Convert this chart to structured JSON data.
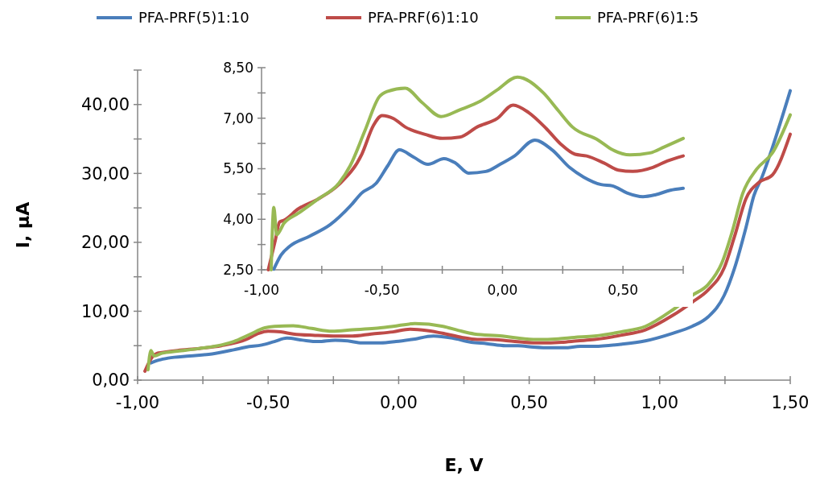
{
  "chart_data": [
    {
      "type": "line",
      "xlabel": "E, V",
      "ylabel": "I, µA",
      "legend": "top",
      "xlim": [
        -1,
        1.5
      ],
      "ylim": [
        0,
        45
      ],
      "xticks": [
        {
          "value": -1,
          "label": "-1,00"
        },
        {
          "value": -0.75,
          "label": null
        },
        {
          "value": -0.5,
          "label": "-0,50"
        },
        {
          "value": -0.25,
          "label": null
        },
        {
          "value": 0,
          "label": "0,00"
        },
        {
          "value": 0.25,
          "label": null
        },
        {
          "value": 0.5,
          "label": "0,50"
        },
        {
          "value": 0.75,
          "label": null
        },
        {
          "value": 1,
          "label": "1,00"
        },
        {
          "value": 1.25,
          "label": null
        },
        {
          "value": 1.5,
          "label": "1,50"
        }
      ],
      "yticks": [
        {
          "value": 0,
          "label": "0,00"
        },
        {
          "value": 5,
          "label": null
        },
        {
          "value": 10,
          "label": "10,00"
        },
        {
          "value": 15,
          "label": null
        },
        {
          "value": 20,
          "label": "20,00"
        },
        {
          "value": 25,
          "label": null
        },
        {
          "value": 30,
          "label": "30,00"
        },
        {
          "value": 35,
          "label": null
        },
        {
          "value": 40,
          "label": "40,00"
        },
        {
          "value": 45,
          "label": null
        }
      ],
      "series": [
        {
          "name": "PFA-PRF(5)1:10",
          "color": "#4a7ebb",
          "x": [
            -0.949,
            -0.919,
            -0.883,
            -0.8,
            -0.715,
            -0.632,
            -0.584,
            -0.524,
            -0.476,
            -0.428,
            -0.368,
            -0.309,
            -0.243,
            -0.195,
            -0.141,
            -0.069,
            -0.01,
            0.05,
            0.134,
            0.206,
            0.278,
            0.337,
            0.409,
            0.457,
            0.517,
            0.583,
            0.636,
            0.696,
            0.75,
            0.85,
            0.945,
            1.05,
            1.124,
            1.186,
            1.247,
            1.287,
            1.33,
            1.361,
            1.392,
            1.432,
            1.5
          ],
          "values": [
            2.5,
            2.9,
            3.2,
            3.5,
            3.8,
            4.4,
            4.8,
            5.1,
            5.6,
            6.1,
            5.8,
            5.6,
            5.8,
            5.7,
            5.4,
            5.4,
            5.6,
            5.9,
            6.4,
            6.1,
            5.5,
            5.3,
            5.0,
            5.0,
            4.8,
            4.7,
            4.7,
            4.9,
            4.9,
            5.2,
            5.7,
            6.8,
            7.8,
            9.2,
            12.3,
            16.3,
            22.1,
            26.8,
            29.5,
            33.8,
            42.0
          ]
        },
        {
          "name": "PFA-PRF(6)1:10",
          "color": "#be4b48",
          "x": [
            -0.972,
            -0.943,
            -0.925,
            -0.907,
            -0.847,
            -0.763,
            -0.679,
            -0.584,
            -0.536,
            -0.5,
            -0.452,
            -0.404,
            -0.321,
            -0.249,
            -0.177,
            -0.105,
            -0.022,
            0.044,
            0.11,
            0.182,
            0.242,
            0.301,
            0.349,
            0.421,
            0.481,
            0.541,
            0.624,
            0.684,
            0.75,
            0.85,
            0.945,
            1.05,
            1.124,
            1.186,
            1.247,
            1.287,
            1.33,
            1.38,
            1.432,
            1.5
          ],
          "values": [
            1.3,
            3.4,
            3.9,
            4.0,
            4.3,
            4.6,
            5.0,
            5.9,
            6.8,
            7.1,
            7.0,
            6.7,
            6.5,
            6.4,
            6.4,
            6.7,
            7.0,
            7.4,
            7.2,
            6.7,
            6.2,
            5.9,
            5.9,
            5.7,
            5.5,
            5.4,
            5.5,
            5.7,
            5.9,
            6.5,
            7.3,
            9.4,
            11.3,
            13.1,
            16.3,
            20.9,
            26.3,
            28.7,
            29.8,
            35.7
          ]
        },
        {
          "name": "PFA-PRF(6)1:5",
          "color": "#98b954",
          "x": [
            -0.96,
            -0.949,
            -0.937,
            -0.907,
            -0.847,
            -0.763,
            -0.679,
            -0.632,
            -0.572,
            -0.512,
            -0.476,
            -0.404,
            -0.333,
            -0.255,
            -0.177,
            -0.093,
            -0.022,
            0.062,
            0.17,
            0.23,
            0.29,
            0.397,
            0.457,
            0.529,
            0.612,
            0.672,
            0.75,
            0.85,
            0.945,
            1.05,
            1.124,
            1.186,
            1.238,
            1.278,
            1.318,
            1.371,
            1.432,
            1.5
          ],
          "values": [
            1.5,
            4.3,
            3.5,
            3.9,
            4.2,
            4.6,
            5.1,
            5.6,
            6.6,
            7.6,
            7.8,
            7.9,
            7.5,
            7.1,
            7.3,
            7.5,
            7.8,
            8.2,
            7.8,
            7.2,
            6.7,
            6.4,
            6.1,
            5.9,
            6.0,
            6.2,
            6.4,
            7.0,
            7.8,
            10.2,
            12.3,
            13.9,
            17.0,
            21.6,
            27.1,
            30.6,
            33.0,
            38.5
          ]
        }
      ]
    },
    {
      "type": "line",
      "xlim": [
        -1,
        0.75
      ],
      "ylim": [
        2.5,
        8.5
      ],
      "xticks": [
        {
          "value": -1,
          "label": "-1,00"
        },
        {
          "value": -0.75,
          "label": null
        },
        {
          "value": -0.5,
          "label": "-0,50"
        },
        {
          "value": -0.25,
          "label": null
        },
        {
          "value": 0,
          "label": "0,00"
        },
        {
          "value": 0.25,
          "label": null
        },
        {
          "value": 0.5,
          "label": "0,50"
        },
        {
          "value": 0.75,
          "label": null
        }
      ],
      "yticks": [
        {
          "value": 2.5,
          "label": "2,50"
        },
        {
          "value": 3.25,
          "label": null
        },
        {
          "value": 4,
          "label": "4,00"
        },
        {
          "value": 4.75,
          "label": null
        },
        {
          "value": 5.5,
          "label": "5,50"
        },
        {
          "value": 6.25,
          "label": null
        },
        {
          "value": 7,
          "label": "7,00"
        },
        {
          "value": 7.75,
          "label": null
        },
        {
          "value": 8.5,
          "label": "8,50"
        }
      ],
      "series": [
        {
          "color": "#4a7ebb",
          "x": [
            -0.949,
            -0.919,
            -0.883,
            -0.8,
            -0.715,
            -0.632,
            -0.584,
            -0.524,
            -0.476,
            -0.428,
            -0.368,
            -0.309,
            -0.243,
            -0.195,
            -0.141,
            -0.069,
            -0.01,
            0.05,
            0.134,
            0.206,
            0.278,
            0.337,
            0.409,
            0.457,
            0.517,
            0.583,
            0.636,
            0.696,
            0.75
          ],
          "values": [
            2.52,
            2.94,
            3.2,
            3.5,
            3.84,
            4.39,
            4.78,
            5.07,
            5.59,
            6.06,
            5.84,
            5.63,
            5.8,
            5.67,
            5.37,
            5.42,
            5.63,
            5.88,
            6.35,
            6.06,
            5.54,
            5.25,
            5.03,
            4.99,
            4.78,
            4.67,
            4.73,
            4.86,
            4.92
          ]
        },
        {
          "color": "#be4b48",
          "x": [
            -0.972,
            -0.943,
            -0.925,
            -0.907,
            -0.847,
            -0.763,
            -0.679,
            -0.584,
            -0.536,
            -0.5,
            -0.452,
            -0.404,
            -0.321,
            -0.249,
            -0.177,
            -0.105,
            -0.022,
            0.044,
            0.11,
            0.182,
            0.242,
            0.301,
            0.349,
            0.421,
            0.481,
            0.541,
            0.624,
            0.684,
            0.75
          ],
          "values": [
            2.5,
            3.37,
            3.92,
            3.97,
            4.31,
            4.61,
            5.03,
            5.93,
            6.78,
            7.08,
            6.99,
            6.74,
            6.52,
            6.4,
            6.44,
            6.74,
            6.99,
            7.39,
            7.16,
            6.69,
            6.23,
            5.93,
            5.88,
            5.67,
            5.46,
            5.42,
            5.54,
            5.73,
            5.88
          ]
        },
        {
          "color": "#98b954",
          "x": [
            -0.96,
            -0.949,
            -0.937,
            -0.907,
            -0.847,
            -0.763,
            -0.679,
            -0.632,
            -0.572,
            -0.512,
            -0.476,
            -0.404,
            -0.333,
            -0.255,
            -0.177,
            -0.093,
            -0.022,
            0.062,
            0.17,
            0.23,
            0.29,
            0.397,
            0.457,
            0.529,
            0.612,
            0.672,
            0.75
          ],
          "values": [
            2.5,
            4.35,
            3.54,
            3.88,
            4.18,
            4.61,
            5.07,
            5.59,
            6.61,
            7.63,
            7.8,
            7.89,
            7.46,
            7.05,
            7.25,
            7.5,
            7.84,
            8.22,
            7.75,
            7.24,
            6.74,
            6.35,
            6.06,
            5.91,
            5.97,
            6.15,
            6.4
          ]
        }
      ]
    }
  ]
}
